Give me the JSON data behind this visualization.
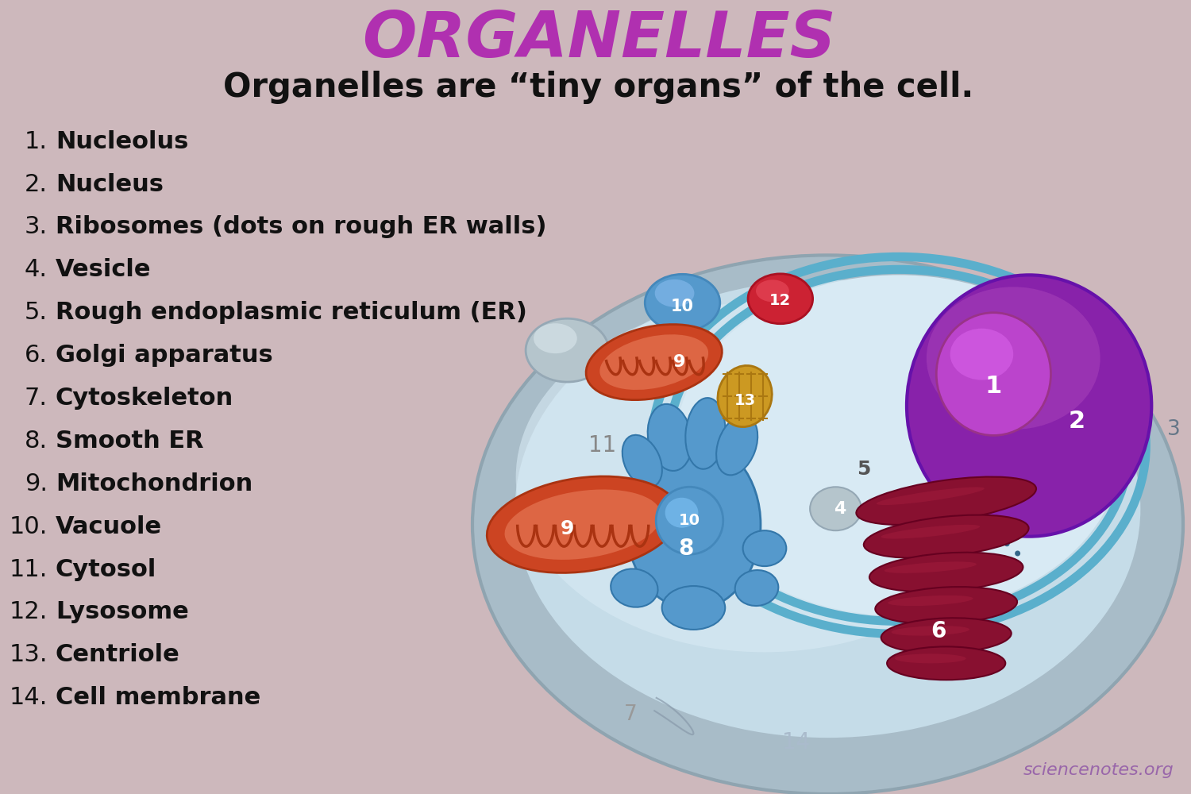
{
  "bg_color": "#cdb8bc",
  "title": "ORGANELLES",
  "title_color": "#b030b0",
  "subtitle": "Organelles are “tiny organs” of the cell.",
  "subtitle_color": "#111111",
  "items": [
    "Nucleolus",
    "Nucleus",
    "Ribosomes (dots on rough ER walls)",
    "Vesicle",
    "Rough endoplasmic reticulum (ER)",
    "Golgi apparatus",
    "Cytoskeleton",
    "Smooth ER",
    "Mitochondrion",
    "Vacuole",
    "Cytosol",
    "Lysosome",
    "Centriole",
    "Cell membrane"
  ],
  "watermark": "sciencenotes.org",
  "cell_outer_color": "#a8bcc8",
  "cell_outer_edge": "#8fa4b0",
  "cell_inner_color": "#c5dce8",
  "cell_inner_color2": "#d8eaf4",
  "nucleus_color": "#8822aa",
  "nucleus_edge": "#6611aa",
  "nucleolus_color": "#bb44cc",
  "nucleolus_edge": "#993388",
  "nucleus_top_color": "#aa44bb",
  "er_color": "#5aafcc",
  "er_dark": "#3d8ea8",
  "er_light": "#7ac8dc",
  "golgi_color": "#881030",
  "golgi_dark": "#660020",
  "golgi_light": "#aa2040",
  "mito_color": "#cc4422",
  "mito_dark": "#aa3311",
  "mito_light": "#dd6644",
  "vacuole_bowl_color": "#5599cc",
  "vacuole_bottom_color": "#4488bb",
  "lysosome_color": "#cc2233",
  "lysosome_dark": "#aa1122",
  "centriole_color": "#cc9922",
  "centriole_dark": "#aa7711",
  "smooth_er_color": "#5599cc",
  "smooth_er_dark": "#3377aa",
  "vesicle_color": "#b5c5cc",
  "vesicle_dark": "#95a8b5",
  "label_white": "#ffffff",
  "label_dark": "#555555",
  "num11_color": "#888888",
  "num7_color": "#999999",
  "num14_color": "#aabbcc",
  "num3_color": "#667788"
}
